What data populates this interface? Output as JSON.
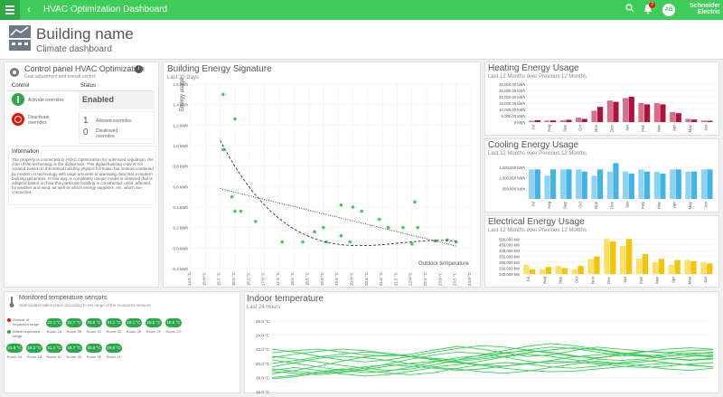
{
  "topbar": {
    "title": "HVAC Optimization Dashboard",
    "notification_count": "3",
    "avatar_initials": "AB",
    "logo": "Schneider Electric",
    "accent": "#3dcd58"
  },
  "header": {
    "building_name": "Building name",
    "subtitle": "Climate dashboard"
  },
  "control_panel": {
    "title": "Control panel HVAC Optimization",
    "subtitle": "Goal adjustment and overall control",
    "col_control": "Control",
    "col_status": "Status",
    "status_value": "Enabled",
    "activate_label": "Activate overrides",
    "deactivate_label": "Deactivate overrides",
    "allowed_count": "1",
    "allowed_label": "Allowed overrides",
    "disallowed_count": "0",
    "disallowed_label": "Disallowed overrides",
    "info_title": "Information",
    "info_text": "The property is connected to HVAC Optimization for optimized regulation, the core of the technology is the digital twin. This digital building copy is not created based on theoretical building physics formulas, but instead combined by modern AI technology with large amounts of operating data that a modern building generates. In this way, a completely unique model is obtained that is adapted based on how this particular building is constructed, used, affected by weather and wind, as well as which energy suppliers, etc. which are connected."
  },
  "signature": {
    "title": "Building Energy Signature",
    "subtitle": "Last 30 Days",
    "ylabel": "Energy usage",
    "xlabel": "Outdoor temperature"
  },
  "heating": {
    "title": "Heating Energy Usage",
    "subtitle": "Last 12 Months over Previous 12 Months",
    "color": "#b0123b"
  },
  "cooling": {
    "title": "Cooling Energy Usage",
    "subtitle": "Last 12 Months over Previous 12 Months",
    "color": "#42b4e6"
  },
  "electrical": {
    "title": "Electrical Energy Usage",
    "subtitle": "Last 12 Months over Previous 12 Months",
    "color": "#ffd100"
  },
  "sensors": {
    "title": "Monitored temperature sensors",
    "subtitle": "Optimization takes place according to set range of the monitored sensors",
    "legend_outside": "Outside of requested range",
    "legend_within": "Within requested range",
    "items": [
      {
        "value": "22.1 °C",
        "name": "Room 2A"
      },
      {
        "value": "22.7 °C",
        "name": "Room 2B"
      },
      {
        "value": "20.8 °C",
        "name": "Room 2C"
      },
      {
        "value": "21.1 °C",
        "name": "Room 2D"
      },
      {
        "value": "18.1 °C",
        "name": "Room 2E"
      },
      {
        "value": "18.6 °C",
        "name": "Room 2F"
      },
      {
        "value": "18.8 °C",
        "name": "Room 2G"
      },
      {
        "value": "21.8 °C",
        "name": "Room 1A"
      },
      {
        "value": "18.2 °C",
        "name": "Room 1B"
      },
      {
        "value": "21.1 °C",
        "name": "Room 1C"
      },
      {
        "value": "18.7 °C",
        "name": "Room 1D"
      },
      {
        "value": "20.8 °C",
        "name": "Room 1E"
      },
      {
        "value": "18.6 °C",
        "name": "Room 1F"
      }
    ]
  },
  "indoor": {
    "title": "Indoor temperature",
    "subtitle": "Last 24 Hours"
  },
  "chart_data": [
    {
      "type": "scatter",
      "title": "Building Energy Signature",
      "subtitle": "Last 30 Days",
      "ylabel": "Energy usage",
      "xlabel": "Outdoor temperature",
      "x_ticks": [
        "14.5 °C",
        "15.0 °C",
        "15.5 °C",
        "16.0 °C",
        "16.5 °C",
        "17.0 °C",
        "17.5 °C",
        "18.0 °C",
        "18.5 °C",
        "19.0 °C",
        "19.5 °C",
        "20.0 °C",
        "20.5 °C",
        "21.0 °C",
        "21.5 °C",
        "22.0 °C",
        "22.5 °C",
        "23.0 °C",
        "23.5 °C",
        "24.0 °C"
      ],
      "y_ticks": [
        "-0.2 kWh",
        "0.0 kWh",
        "0.2 kWh",
        "0.4 kWh",
        "0.6 kWh",
        "0.8 kWh",
        "1.0 kWh",
        "1.2 kWh",
        "1.4 kWh",
        "1.6 kWh"
      ],
      "xlim": [
        14.5,
        24.0
      ],
      "ylim": [
        -0.2,
        1.6
      ],
      "points": [
        [
          15.6,
          1.5
        ],
        [
          15.6,
          0.96
        ],
        [
          16.0,
          1.26
        ],
        [
          15.9,
          0.5
        ],
        [
          16.0,
          0.36
        ],
        [
          16.2,
          0.36
        ],
        [
          16.7,
          0.26
        ],
        [
          17.6,
          0.06
        ],
        [
          18.3,
          0.06
        ],
        [
          18.7,
          0.16
        ],
        [
          19.0,
          0.2
        ],
        [
          19.1,
          0.06
        ],
        [
          19.6,
          0.42
        ],
        [
          19.6,
          0.12
        ],
        [
          19.9,
          0.06
        ],
        [
          20.0,
          0.4
        ],
        [
          20.3,
          0.36
        ],
        [
          20.9,
          0.28
        ],
        [
          21.2,
          0.2
        ],
        [
          21.7,
          0.2
        ],
        [
          22.0,
          0.04
        ],
        [
          22.2,
          0.2
        ],
        [
          22.1,
          0.45
        ],
        [
          23.2,
          0.08
        ],
        [
          23.5,
          0.06
        ],
        [
          22.8,
          0.07
        ]
      ],
      "trend_lines": [
        "dashed",
        "dotted"
      ]
    },
    {
      "type": "bar",
      "title": "Heating Energy Usage",
      "categories": [
        "Jul",
        "Aug",
        "Sep",
        "Oct",
        "Nov",
        "Dec",
        "Jan",
        "Feb",
        "Mar",
        "Apr",
        "May",
        "Jun"
      ],
      "y_ticks": [
        "0 kWh",
        "5,000.00 kWh",
        "10,000.00 kWh",
        "15,000.00 kWh",
        "20,000.00 kWh",
        "25,000.00 kWh",
        "30,000.00 kWh"
      ],
      "ylim": [
        0,
        30000
      ],
      "series": [
        {
          "values": [
            1000,
            1200,
            1400,
            3500,
            9000,
            17000,
            19000,
            15000,
            15000,
            8000,
            2500,
            1200
          ]
        },
        {
          "values": [
            1500,
            1300,
            1800,
            2500,
            12000,
            16000,
            20000,
            14000,
            14000,
            7000,
            2000,
            1000
          ]
        }
      ]
    },
    {
      "type": "bar",
      "title": "Cooling Energy Usage",
      "categories": [
        "Jul",
        "Aug",
        "Sep",
        "Oct",
        "Nov",
        "Dec",
        "Jan",
        "Feb",
        "Mar",
        "Apr",
        "May",
        "Jun"
      ],
      "y_ticks": [
        "500,000 kWh",
        "1,000,000 kWh",
        "1,500,000 kWh"
      ],
      "ylim": [
        0,
        1800000
      ],
      "series": [
        {
          "values": [
            1400000,
            1100000,
            1400000,
            1400000,
            1100000,
            1300000,
            1300000,
            1400000,
            1300000,
            1400000,
            1300000,
            1400000
          ]
        },
        {
          "values": [
            1400000,
            1400000,
            1400000,
            1300000,
            1400000,
            1700000,
            1200000,
            1300000,
            1200000,
            1400000,
            1300000,
            1400000
          ]
        }
      ]
    },
    {
      "type": "bar",
      "title": "Electrical Energy Usage",
      "categories": [
        "Jul",
        "Aug",
        "Sep",
        "Oct",
        "Nov",
        "Dec",
        "Jan",
        "Feb",
        "Mar",
        "Apr",
        "May",
        "Jun"
      ],
      "y_ticks": [
        "200,000 kW",
        "250,000 kW",
        "300,000 kW",
        "350,000 kW",
        "400,000 kW",
        "450,000 kW",
        "500,000 kW"
      ],
      "ylim": [
        200000,
        510000
      ],
      "series": [
        {
          "values": [
            280000,
            240000,
            270000,
            240000,
            330000,
            500000,
            440000,
            330000,
            300000,
            280000,
            320000,
            300000
          ]
        },
        {
          "values": [
            240000,
            260000,
            250000,
            270000,
            350000,
            480000,
            500000,
            370000,
            330000,
            320000,
            310000,
            290000
          ]
        }
      ]
    },
    {
      "type": "line",
      "title": "Indoor temperature",
      "subtitle": "Last 24 Hours",
      "y_ticks": [
        "16.0 °C",
        "18.0 °C",
        "20.0 °C",
        "22.0 °C",
        "24.0 °C",
        "26.0 °C"
      ],
      "ylim": [
        16.0,
        26.5
      ],
      "series": [
        {
          "values": [
            21.5,
            21.8,
            22.0,
            21.6,
            21.2,
            21.0,
            21.3,
            21.9,
            22.4,
            22.0,
            21.5,
            21.0,
            21.2,
            21.8,
            22.3,
            22.0,
            21.7,
            21.5,
            21.8,
            21.9
          ]
        },
        {
          "values": [
            18.5,
            19.0,
            19.6,
            20.3,
            20.9,
            21.2,
            21.0,
            20.7,
            20.5,
            20.8,
            21.4,
            21.9,
            22.3,
            22.1,
            21.6,
            21.1,
            21.0,
            21.3,
            21.5,
            21.4
          ]
        },
        {
          "values": [
            19.2,
            18.9,
            18.6,
            18.8,
            19.3,
            19.9,
            20.6,
            21.2,
            21.6,
            21.4,
            20.9,
            20.3,
            20.0,
            20.2,
            20.7,
            21.3,
            21.7,
            21.5,
            21.1,
            20.9
          ]
        },
        {
          "values": [
            20.5,
            20.0,
            19.5,
            19.0,
            18.7,
            18.9,
            19.5,
            20.2,
            20.8,
            21.1,
            21.5,
            21.8,
            21.6,
            21.1,
            20.6,
            20.4,
            20.6,
            21.0,
            21.3,
            21.0
          ]
        },
        {
          "values": [
            18.0,
            18.3,
            18.8,
            19.2,
            19.0,
            18.6,
            18.4,
            18.7,
            19.3,
            19.8,
            20.1,
            19.9,
            19.5,
            19.3,
            19.6,
            20.1,
            20.4,
            20.1,
            19.7,
            19.5
          ]
        },
        {
          "values": [
            21.0,
            20.6,
            20.2,
            19.7,
            19.3,
            19.0,
            19.2,
            19.8,
            20.5,
            21.2,
            21.8,
            22.4,
            22.8,
            22.5,
            22.0,
            21.5,
            21.2,
            21.0,
            21.3,
            21.6
          ]
        },
        {
          "values": [
            19.0,
            19.4,
            19.0,
            18.5,
            18.2,
            18.4,
            18.9,
            19.4,
            19.2,
            18.8,
            18.6,
            18.9,
            19.4,
            19.9,
            20.3,
            20.0,
            19.6,
            19.2,
            19.0,
            19.3
          ]
        },
        {
          "values": [
            20.0,
            20.4,
            20.9,
            21.3,
            21.6,
            21.4,
            21.0,
            20.6,
            20.2,
            19.8,
            19.6,
            19.9,
            20.4,
            20.9,
            21.2,
            21.4,
            21.1,
            20.7,
            20.4,
            20.6
          ]
        },
        {
          "values": [
            22.0,
            21.6,
            21.0,
            20.5,
            20.2,
            20.5,
            21.0,
            21.6,
            22.1,
            22.5,
            22.3,
            21.9,
            21.4,
            21.0,
            20.8,
            21.1,
            21.6,
            22.0,
            22.2,
            22.0
          ]
        },
        {
          "values": [
            18.8,
            18.6,
            18.4,
            18.7,
            19.1,
            19.6,
            20.0,
            20.3,
            20.1,
            19.7,
            19.3,
            19.0,
            18.8,
            18.9,
            19.2,
            19.5,
            19.8,
            20.0,
            19.8,
            19.5
          ]
        },
        {
          "values": [
            19.5,
            20.1,
            20.7,
            21.0,
            20.8,
            20.4,
            19.9,
            19.5,
            19.8,
            20.3,
            20.9,
            21.3,
            21.0,
            20.5,
            20.1,
            19.9,
            20.2,
            20.6,
            21.0,
            21.2
          ]
        },
        {
          "values": [
            20.8,
            21.3,
            21.7,
            22.0,
            21.8,
            21.4,
            20.9,
            20.5,
            20.3,
            20.6,
            21.0,
            21.5,
            21.9,
            22.2,
            21.9,
            21.4,
            21.0,
            20.7,
            20.5,
            20.7
          ]
        },
        {
          "values": [
            17.8,
            18.1,
            18.6,
            19.1,
            19.5,
            19.8,
            19.6,
            19.3,
            19.0,
            19.2,
            19.6,
            20.0,
            20.3,
            20.2,
            19.9,
            19.6,
            19.4,
            19.6,
            19.9,
            20.1
          ]
        }
      ]
    }
  ]
}
